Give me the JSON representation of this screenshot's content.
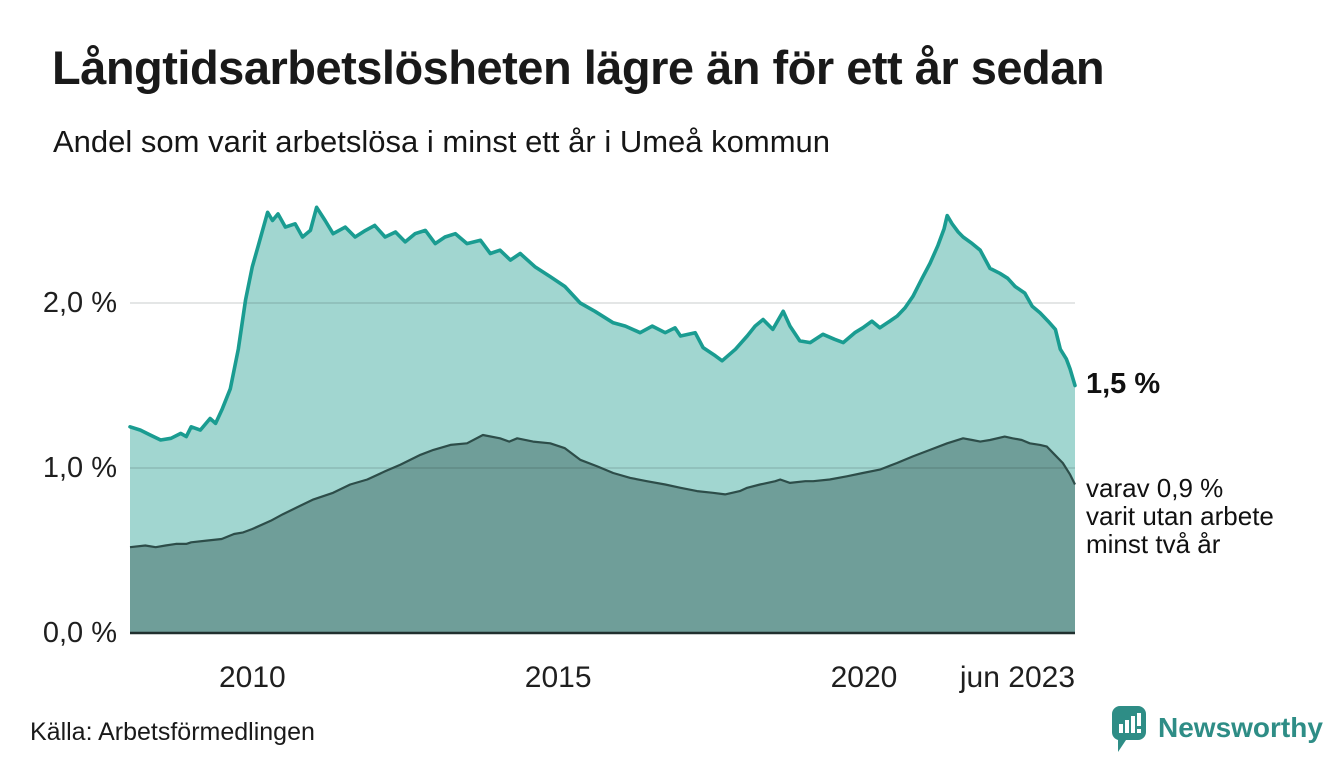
{
  "title": "Långtidsarbetslösheten lägre än för ett år sedan",
  "subtitle": "Andel som varit arbetslösa i minst ett år i Umeå kommun",
  "source": "Källa: Arbetsförmedlingen",
  "logo": {
    "text": "Newsworthy",
    "icon": "newsworthy-bars-icon",
    "color": "#2e8d86"
  },
  "annotations": {
    "series1_end_label": "1,5 %",
    "note_lines": [
      "varav 0,9 %",
      "varit utan arbete",
      "minst två år"
    ]
  },
  "chart_data": {
    "type": "area",
    "title": "Långtidsarbetslösheten lägre än för ett år sedan",
    "subtitle": "Andel som varit arbetslösa i minst ett år i Umeå kommun",
    "x_unit": "decimal_year",
    "x_range": [
      2008.0,
      2023.45
    ],
    "y_range": [
      0,
      2.7
    ],
    "grid": "horizontal",
    "legend_position": "none",
    "colors": {
      "series1_fill": "#a1d6d0",
      "series1_line": "#1a9c91",
      "series2_fill": "#6f9e99",
      "series2_line": "#2d4d49",
      "baseline": "#20302e",
      "gridline": "rgba(20,30,28,0.15)"
    },
    "y_ticks": [
      {
        "value": 0,
        "label": "0,0 %"
      },
      {
        "value": 1,
        "label": "1,0 %"
      },
      {
        "value": 2,
        "label": "2,0 %"
      }
    ],
    "x_ticks": [
      {
        "value": 2010,
        "label": "2010"
      },
      {
        "value": 2015,
        "label": "2015"
      },
      {
        "value": 2020,
        "label": "2020"
      },
      {
        "value": 2023.45,
        "label": "jun 2023"
      }
    ],
    "series": [
      {
        "name": "Andel arbetslösa minst ett år",
        "end_value_pct": 1.5,
        "points": [
          [
            2008.0,
            1.25
          ],
          [
            2008.17,
            1.23
          ],
          [
            2008.33,
            1.2
          ],
          [
            2008.5,
            1.17
          ],
          [
            2008.67,
            1.18
          ],
          [
            2008.83,
            1.21
          ],
          [
            2008.92,
            1.19
          ],
          [
            2009.0,
            1.25
          ],
          [
            2009.15,
            1.23
          ],
          [
            2009.31,
            1.3
          ],
          [
            2009.4,
            1.27
          ],
          [
            2009.51,
            1.36
          ],
          [
            2009.64,
            1.48
          ],
          [
            2009.77,
            1.72
          ],
          [
            2009.89,
            2.02
          ],
          [
            2010.0,
            2.22
          ],
          [
            2010.1,
            2.35
          ],
          [
            2010.25,
            2.55
          ],
          [
            2010.33,
            2.5
          ],
          [
            2010.42,
            2.54
          ],
          [
            2010.54,
            2.46
          ],
          [
            2010.7,
            2.48
          ],
          [
            2010.82,
            2.4
          ],
          [
            2010.95,
            2.44
          ],
          [
            2011.05,
            2.58
          ],
          [
            2011.19,
            2.5
          ],
          [
            2011.32,
            2.42
          ],
          [
            2011.52,
            2.46
          ],
          [
            2011.68,
            2.4
          ],
          [
            2011.85,
            2.44
          ],
          [
            2012.0,
            2.47
          ],
          [
            2012.17,
            2.4
          ],
          [
            2012.34,
            2.43
          ],
          [
            2012.5,
            2.37
          ],
          [
            2012.66,
            2.42
          ],
          [
            2012.83,
            2.44
          ],
          [
            2012.99,
            2.36
          ],
          [
            2013.15,
            2.4
          ],
          [
            2013.32,
            2.42
          ],
          [
            2013.51,
            2.36
          ],
          [
            2013.73,
            2.38
          ],
          [
            2013.89,
            2.3
          ],
          [
            2014.05,
            2.32
          ],
          [
            2014.22,
            2.26
          ],
          [
            2014.38,
            2.3
          ],
          [
            2014.62,
            2.22
          ],
          [
            2014.87,
            2.16
          ],
          [
            2015.11,
            2.1
          ],
          [
            2015.36,
            2.0
          ],
          [
            2015.6,
            1.95
          ],
          [
            2015.9,
            1.88
          ],
          [
            2016.1,
            1.86
          ],
          [
            2016.34,
            1.82
          ],
          [
            2016.54,
            1.86
          ],
          [
            2016.75,
            1.82
          ],
          [
            2016.91,
            1.85
          ],
          [
            2017.0,
            1.8
          ],
          [
            2017.24,
            1.82
          ],
          [
            2017.37,
            1.73
          ],
          [
            2017.57,
            1.68
          ],
          [
            2017.68,
            1.65
          ],
          [
            2017.9,
            1.72
          ],
          [
            2018.09,
            1.8
          ],
          [
            2018.22,
            1.86
          ],
          [
            2018.35,
            1.9
          ],
          [
            2018.51,
            1.84
          ],
          [
            2018.68,
            1.95
          ],
          [
            2018.79,
            1.86
          ],
          [
            2018.95,
            1.77
          ],
          [
            2019.12,
            1.76
          ],
          [
            2019.33,
            1.81
          ],
          [
            2019.52,
            1.78
          ],
          [
            2019.66,
            1.76
          ],
          [
            2019.85,
            1.82
          ],
          [
            2019.98,
            1.85
          ],
          [
            2020.13,
            1.89
          ],
          [
            2020.26,
            1.85
          ],
          [
            2020.42,
            1.89
          ],
          [
            2020.54,
            1.92
          ],
          [
            2020.67,
            1.97
          ],
          [
            2020.8,
            2.04
          ],
          [
            2020.95,
            2.15
          ],
          [
            2021.08,
            2.24
          ],
          [
            2021.21,
            2.35
          ],
          [
            2021.31,
            2.45
          ],
          [
            2021.36,
            2.53
          ],
          [
            2021.44,
            2.48
          ],
          [
            2021.54,
            2.43
          ],
          [
            2021.62,
            2.4
          ],
          [
            2021.77,
            2.36
          ],
          [
            2021.9,
            2.32
          ],
          [
            2022.06,
            2.21
          ],
          [
            2022.22,
            2.18
          ],
          [
            2022.35,
            2.15
          ],
          [
            2022.47,
            2.1
          ],
          [
            2022.63,
            2.06
          ],
          [
            2022.75,
            1.98
          ],
          [
            2022.88,
            1.94
          ],
          [
            2023.01,
            1.89
          ],
          [
            2023.13,
            1.84
          ],
          [
            2023.21,
            1.72
          ],
          [
            2023.31,
            1.66
          ],
          [
            2023.37,
            1.6
          ],
          [
            2023.45,
            1.5
          ]
        ]
      },
      {
        "name": "Andel arbetslösa minst två år",
        "end_value_pct": 0.9,
        "points": [
          [
            2008.0,
            0.52
          ],
          [
            2008.25,
            0.53
          ],
          [
            2008.42,
            0.52
          ],
          [
            2008.58,
            0.53
          ],
          [
            2008.75,
            0.54
          ],
          [
            2008.92,
            0.54
          ],
          [
            2009.0,
            0.55
          ],
          [
            2009.25,
            0.56
          ],
          [
            2009.5,
            0.57
          ],
          [
            2009.7,
            0.6
          ],
          [
            2009.85,
            0.61
          ],
          [
            2010.0,
            0.63
          ],
          [
            2010.3,
            0.68
          ],
          [
            2010.5,
            0.72
          ],
          [
            2010.78,
            0.77
          ],
          [
            2011.0,
            0.81
          ],
          [
            2011.32,
            0.85
          ],
          [
            2011.6,
            0.9
          ],
          [
            2011.88,
            0.93
          ],
          [
            2012.17,
            0.98
          ],
          [
            2012.42,
            1.02
          ],
          [
            2012.75,
            1.08
          ],
          [
            2012.96,
            1.11
          ],
          [
            2013.24,
            1.14
          ],
          [
            2013.51,
            1.15
          ],
          [
            2013.77,
            1.2
          ],
          [
            2014.05,
            1.18
          ],
          [
            2014.2,
            1.16
          ],
          [
            2014.33,
            1.18
          ],
          [
            2014.59,
            1.16
          ],
          [
            2014.87,
            1.15
          ],
          [
            2015.11,
            1.12
          ],
          [
            2015.36,
            1.05
          ],
          [
            2015.64,
            1.01
          ],
          [
            2015.9,
            0.97
          ],
          [
            2016.18,
            0.94
          ],
          [
            2016.45,
            0.92
          ],
          [
            2016.75,
            0.9
          ],
          [
            2017.0,
            0.88
          ],
          [
            2017.27,
            0.86
          ],
          [
            2017.53,
            0.85
          ],
          [
            2017.73,
            0.84
          ],
          [
            2017.97,
            0.86
          ],
          [
            2018.09,
            0.88
          ],
          [
            2018.3,
            0.9
          ],
          [
            2018.55,
            0.92
          ],
          [
            2018.63,
            0.93
          ],
          [
            2018.79,
            0.91
          ],
          [
            2019.04,
            0.92
          ],
          [
            2019.17,
            0.92
          ],
          [
            2019.44,
            0.93
          ],
          [
            2019.72,
            0.95
          ],
          [
            2019.98,
            0.97
          ],
          [
            2020.26,
            0.99
          ],
          [
            2020.54,
            1.03
          ],
          [
            2020.8,
            1.07
          ],
          [
            2021.08,
            1.11
          ],
          [
            2021.36,
            1.15
          ],
          [
            2021.62,
            1.18
          ],
          [
            2021.77,
            1.17
          ],
          [
            2021.9,
            1.16
          ],
          [
            2022.06,
            1.17
          ],
          [
            2022.3,
            1.19
          ],
          [
            2022.43,
            1.18
          ],
          [
            2022.58,
            1.17
          ],
          [
            2022.71,
            1.15
          ],
          [
            2022.88,
            1.14
          ],
          [
            2022.99,
            1.13
          ],
          [
            2023.12,
            1.08
          ],
          [
            2023.25,
            1.03
          ],
          [
            2023.37,
            0.96
          ],
          [
            2023.45,
            0.9
          ]
        ]
      }
    ]
  }
}
